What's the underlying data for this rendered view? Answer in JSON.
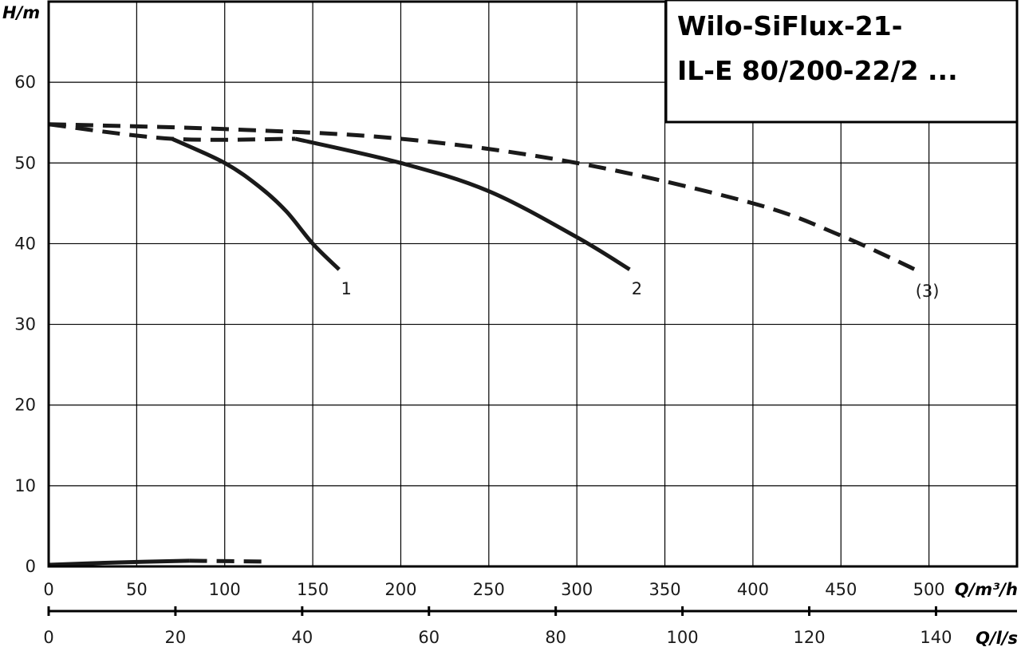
{
  "chart_data": {
    "type": "line",
    "title_lines": [
      "Wilo-SiFlux-21-",
      "IL-E 80/200-22/2 ..."
    ],
    "ylabel": "H/m",
    "xlabel": "Q/m³/h",
    "x2label": "Q/l/s",
    "xlim": [
      0,
      550
    ],
    "ylim": [
      0,
      70
    ],
    "x2lim": [
      0,
      152.78
    ],
    "x_ticks": [
      0,
      50,
      100,
      150,
      200,
      250,
      300,
      350,
      400,
      450,
      500
    ],
    "y_ticks": [
      0,
      10,
      20,
      30,
      40,
      50,
      60
    ],
    "x2_ticks": [
      0,
      20,
      40,
      60,
      80,
      100,
      120,
      140
    ],
    "grid": true,
    "series": [
      {
        "label": "1",
        "style": "solid",
        "x": [
          70,
          100,
          120,
          135,
          150,
          165
        ],
        "y": [
          53,
          50,
          47,
          44,
          40,
          36.8
        ]
      },
      {
        "label": "2",
        "style": "solid",
        "x": [
          140,
          200,
          250,
          300,
          330
        ],
        "y": [
          53,
          50,
          46.5,
          40.8,
          36.8
        ]
      },
      {
        "label": "(3)",
        "style": "dashed",
        "x": [
          0,
          100,
          200,
          300,
          400,
          450,
          495
        ],
        "y": [
          54.8,
          54.2,
          53,
          50,
          45,
          41,
          36.5
        ]
      },
      {
        "style": "dashed",
        "x": [
          0,
          70,
          140
        ],
        "y": [
          54.8,
          53,
          53
        ]
      },
      {
        "style": "solid",
        "x": [
          0,
          40,
          80
        ],
        "y": [
          0.2,
          0.5,
          0.7
        ]
      },
      {
        "style": "dashed",
        "x": [
          80,
          125
        ],
        "y": [
          0.7,
          0.6
        ]
      }
    ]
  }
}
